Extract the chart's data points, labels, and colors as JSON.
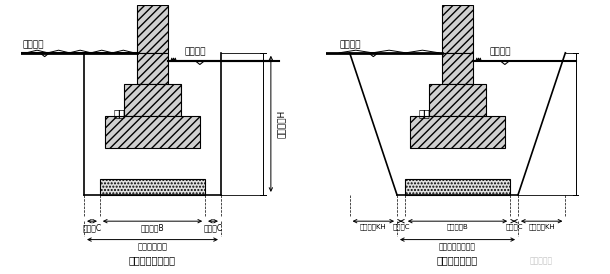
{
  "bg_color": "#ffffff",
  "fig_width": 6.1,
  "fig_height": 2.74,
  "left": {
    "title": "不放坡的基槽断面",
    "outdoor_label": "室外地坪",
    "indoor_label": "室内地坪",
    "foundation_label": "基础",
    "work_c_left": "工作面C",
    "work_c_right": "工作面C",
    "base_width_label": "基础宽度B",
    "excavation_label": "基槽开挖宽度",
    "depth_label": "开挖深度H"
  },
  "right": {
    "title": "放坡的基槽断面",
    "outdoor_label": "室外地坪",
    "indoor_label": "室内地坪",
    "foundation_label": "基础",
    "work_c_left": "工作面C",
    "work_c_right": "工作面C",
    "slope_left": "放坡宽度KH",
    "slope_right": "放坡宽度KH",
    "base_width_label": "基础宽度B",
    "excavation_label": "基槽基底开挖宽度",
    "watermark": "建筑大家园"
  }
}
